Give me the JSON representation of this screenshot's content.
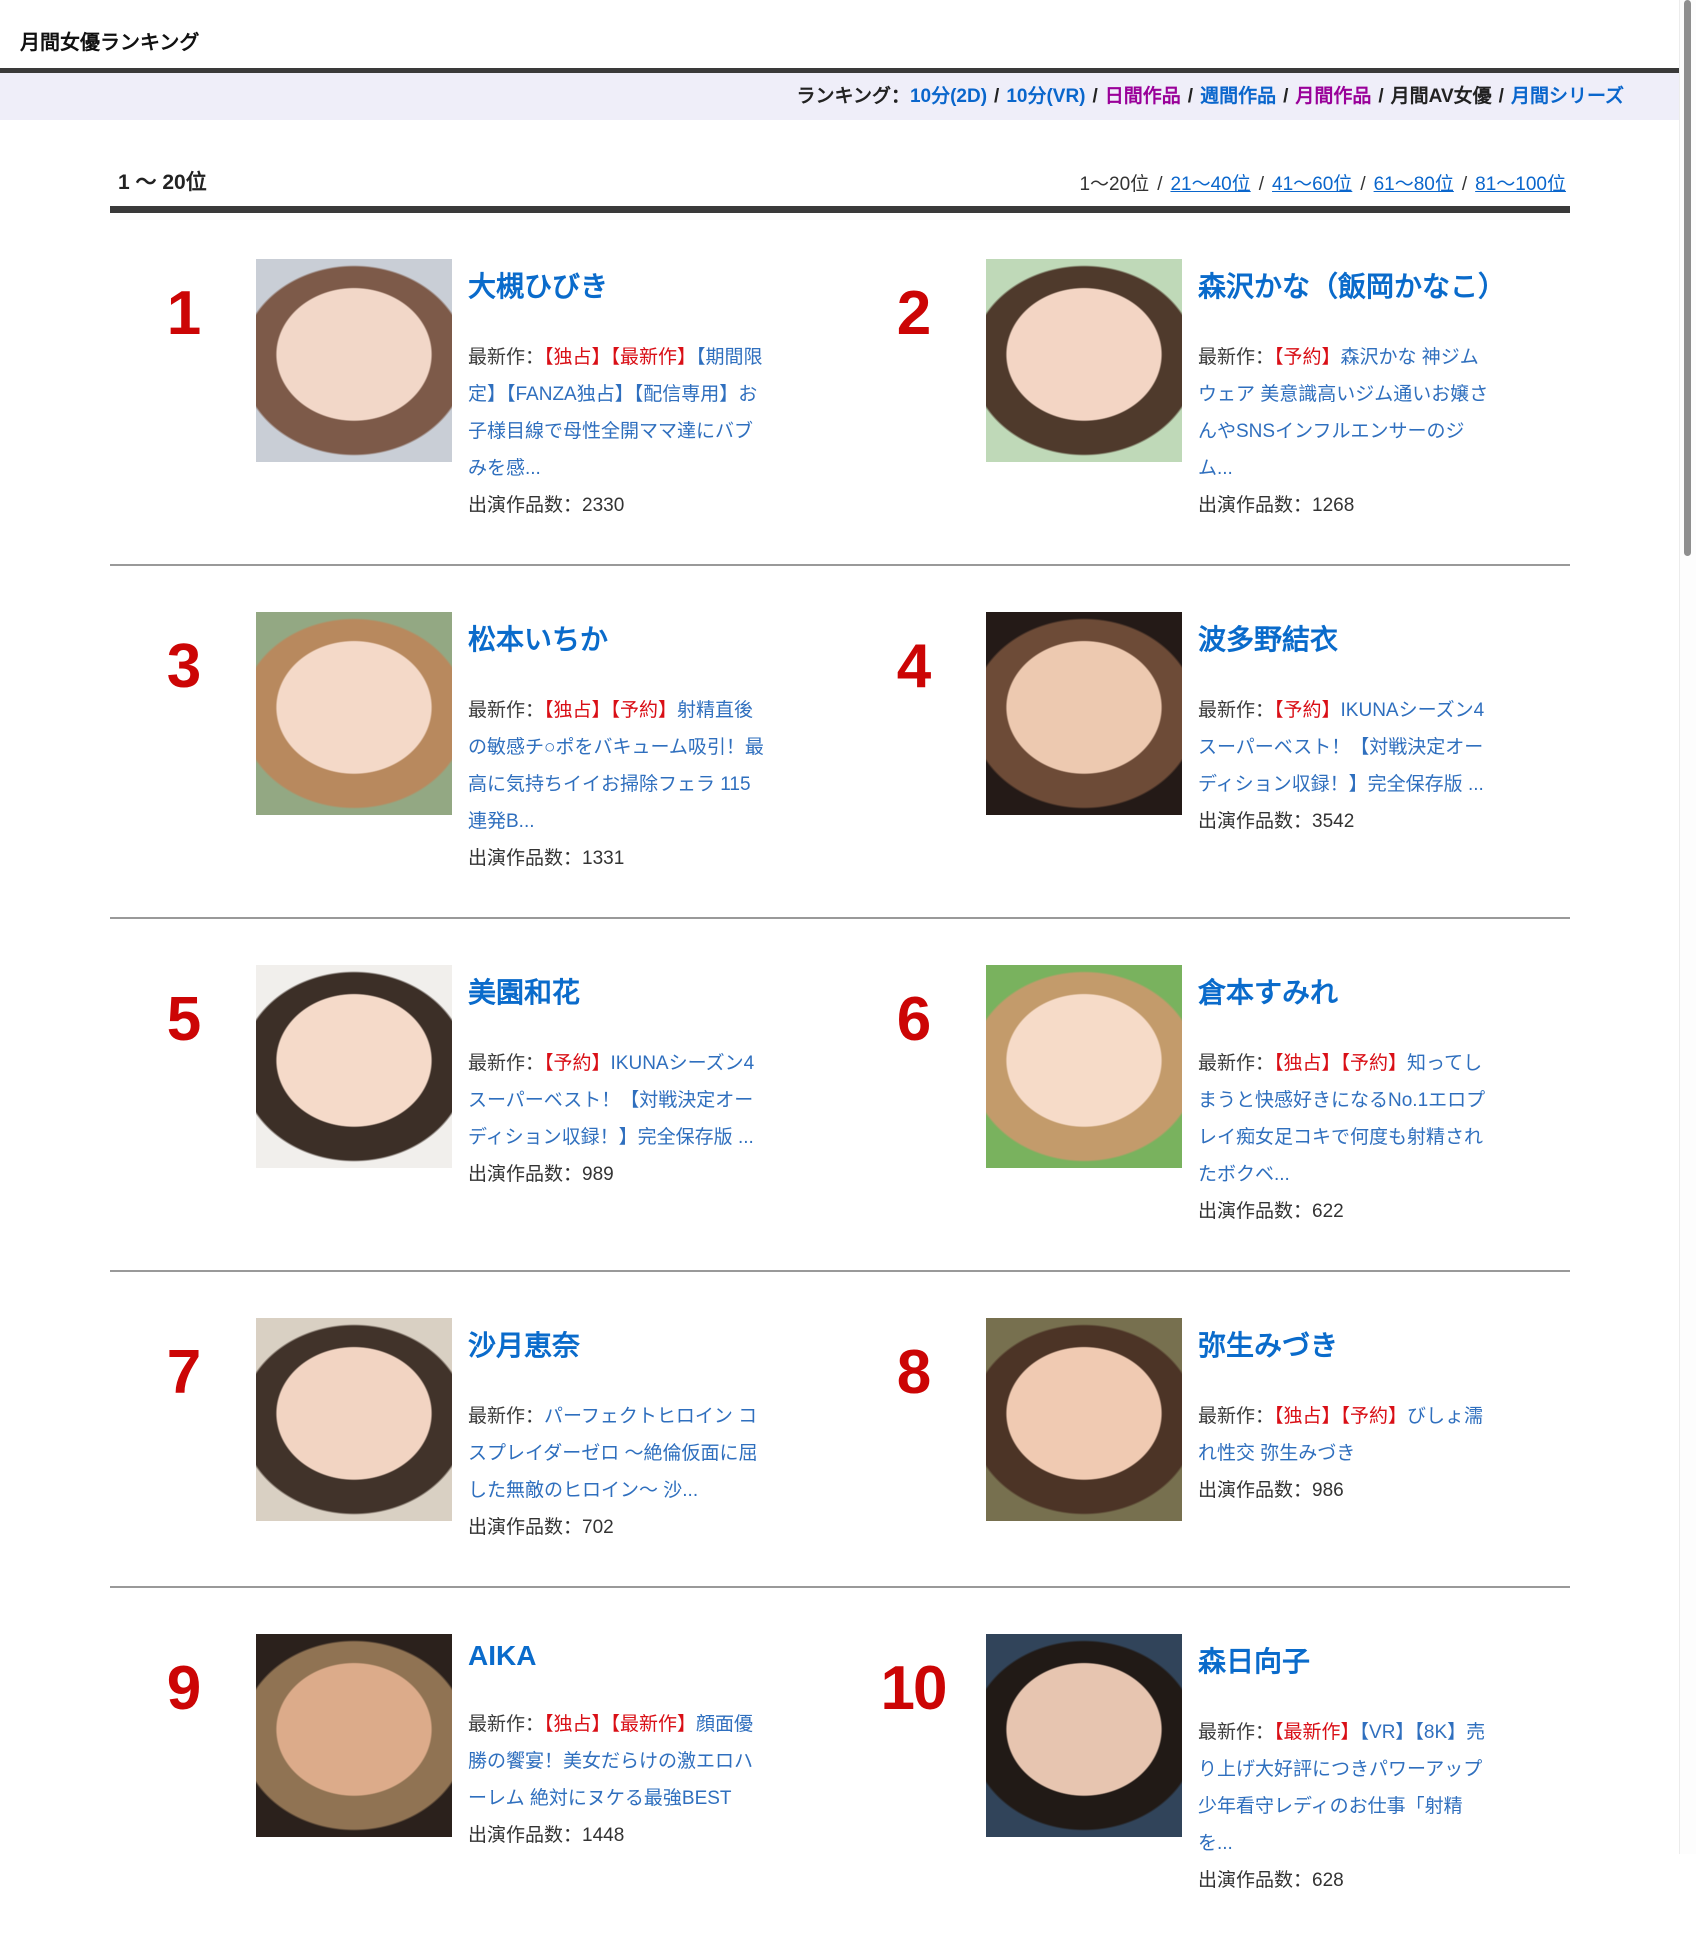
{
  "page": {
    "title": "月間女優ランキング"
  },
  "colors": {
    "nav_band": "#efeef9",
    "rank_red": "#cc0505",
    "tag_red": "#d90f16",
    "link_blue": "#0a66cc",
    "name_blue": "#0a6bcb",
    "desc_blue": "#2f6fbe",
    "visited_purple": "#990099"
  },
  "ranking_nav": {
    "prefix": "ランキング：",
    "separator": "/",
    "items": [
      {
        "label": "10分(2D)",
        "state": "link"
      },
      {
        "label": "10分(VR)",
        "state": "link"
      },
      {
        "label": "日間作品",
        "state": "visited"
      },
      {
        "label": "週間作品",
        "state": "link"
      },
      {
        "label": "月間作品",
        "state": "visited"
      },
      {
        "label": "月間AV女優",
        "state": "current"
      },
      {
        "label": "月間シリーズ",
        "state": "link"
      }
    ]
  },
  "range_header": {
    "current_label": "1 ～ 20位"
  },
  "pagination": {
    "separator": "/",
    "items": [
      {
        "label": "1～20位",
        "current": true
      },
      {
        "label": "21～40位",
        "current": false
      },
      {
        "label": "41～60位",
        "current": false
      },
      {
        "label": "61～80位",
        "current": false
      },
      {
        "label": "81～100位",
        "current": false
      }
    ]
  },
  "list": {
    "latest_prefix": "最新作：",
    "works_prefix": "出演作品数："
  },
  "entries": [
    {
      "rank": "1",
      "name": "大槻ひびき",
      "tags": "【独占】【最新作】",
      "title": "【期間限定】【FANZA独占】【配信専用】お子様目線で母性全開ママ達にバブみを感...",
      "works": "2330",
      "photo": {
        "bg": "#c9ced6",
        "hair": "#7d5a49",
        "skin": "#f2d7c8"
      }
    },
    {
      "rank": "2",
      "name": "森沢かな（飯岡かなこ）",
      "tags": "【予約】",
      "title": "森沢かな 神ジムウェア 美意識高いジム通いお嬢さんやSNSインフルエンサーのジム...",
      "works": "1268",
      "photo": {
        "bg": "#bfd9b8",
        "hair": "#4f3a2c",
        "skin": "#f3d5c4"
      }
    },
    {
      "rank": "3",
      "name": "松本いちか",
      "tags": "【独占】【予約】",
      "title": "射精直後の敏感チ○ポをバキューム吸引！最高に気持ちイイお掃除フェラ 115連発B...",
      "works": "1331",
      "photo": {
        "bg": "#93a883",
        "hair": "#b8895e",
        "skin": "#f4d9c8"
      }
    },
    {
      "rank": "4",
      "name": "波多野結衣",
      "tags": "【予約】",
      "title": "IKUNAシーズン4スーパーベスト！【対戦決定オーディション収録！】完全保存版 ...",
      "works": "3542",
      "photo": {
        "bg": "#241a17",
        "hair": "#6d4b37",
        "skin": "#edc9b0"
      }
    },
    {
      "rank": "5",
      "name": "美園和花",
      "tags": "【予約】",
      "title": "IKUNAシーズン4スーパーベスト！【対戦決定オーディション収録！】完全保存版 ...",
      "works": "989",
      "photo": {
        "bg": "#f1efec",
        "hair": "#3c2f27",
        "skin": "#f5dac9"
      }
    },
    {
      "rank": "6",
      "name": "倉本すみれ",
      "tags": "【独占】【予約】",
      "title": "知ってしまうと快感好きになるNo.1エロプレイ痴女足コキで何度も射精されたボクベ...",
      "works": "622",
      "photo": {
        "bg": "#79b25e",
        "hair": "#c39b6b",
        "skin": "#f6dbc8"
      }
    },
    {
      "rank": "7",
      "name": "沙月恵奈",
      "tags": "",
      "title": "パーフェクトヒロイン コスプレイダーゼロ ～絶倫仮面に屈した無敵のヒロイン～ 沙...",
      "works": "702",
      "photo": {
        "bg": "#d9d0c3",
        "hair": "#41332a",
        "skin": "#f2d4c2"
      }
    },
    {
      "rank": "8",
      "name": "弥生みづき",
      "tags": "【独占】【予約】",
      "title": "びしょ濡れ性交 弥生みづき",
      "works": "986",
      "photo": {
        "bg": "#77704f",
        "hair": "#4c3426",
        "skin": "#f0cab2"
      }
    },
    {
      "rank": "9",
      "name": "AIKA",
      "tags": "【独占】【最新作】",
      "title": "顔面優勝の饗宴！美女だらけの激エロハーレム 絶対にヌケる最強BEST",
      "works": "1448",
      "photo": {
        "bg": "#2b211c",
        "hair": "#907353",
        "skin": "#dcab8a"
      }
    },
    {
      "rank": "10",
      "name": "森日向子",
      "tags": "【最新作】",
      "title": "【VR】【8K】売り上げ大好評につきパワーアップ 少年看守レディのお仕事「射精を...",
      "works": "628",
      "photo": {
        "bg": "#31445a",
        "hair": "#211a16",
        "skin": "#e7c5b0"
      }
    }
  ]
}
